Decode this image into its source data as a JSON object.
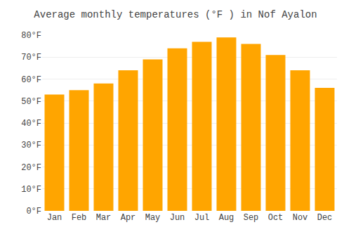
{
  "chart_data": {
    "type": "bar",
    "title": "Average monthly temperatures (°F ) in Nof Ayalon",
    "categories": [
      "Jan",
      "Feb",
      "Mar",
      "Apr",
      "May",
      "Jun",
      "Jul",
      "Aug",
      "Sep",
      "Oct",
      "Nov",
      "Dec"
    ],
    "values": [
      53,
      55,
      58,
      64,
      69,
      74,
      77,
      79,
      76,
      71,
      64,
      56
    ],
    "color": "#FFA500",
    "ylim": [
      0,
      80
    ],
    "yticks": [
      {
        "value": 0,
        "label": "0°F"
      },
      {
        "value": 10,
        "label": "10°F"
      },
      {
        "value": 20,
        "label": "20°F"
      },
      {
        "value": 30,
        "label": "30°F"
      },
      {
        "value": 40,
        "label": "40°F"
      },
      {
        "value": 50,
        "label": "50°F"
      },
      {
        "value": 60,
        "label": "60°F"
      },
      {
        "value": 70,
        "label": "70°F"
      },
      {
        "value": 80,
        "label": "80°F"
      }
    ],
    "grid": true
  }
}
